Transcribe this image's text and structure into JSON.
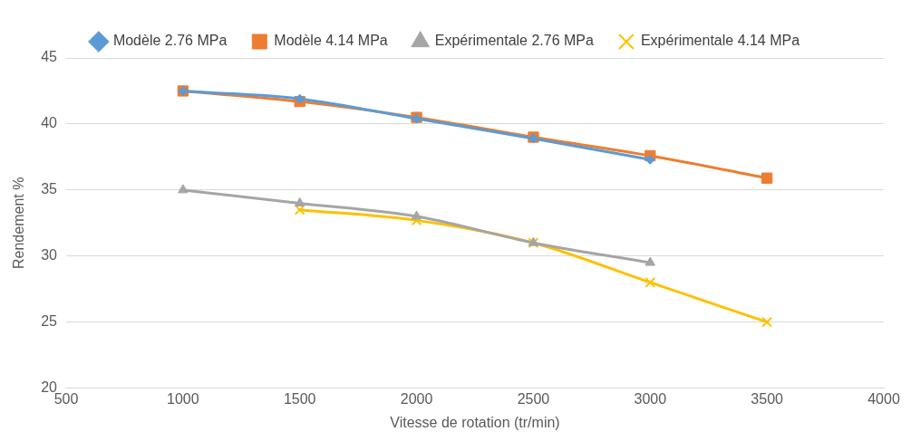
{
  "chart_data": {
    "type": "line",
    "xlabel": "Vitesse de rotation (tr/min)",
    "ylabel": "Rendement %",
    "xlim": [
      500,
      4000
    ],
    "xticks": [
      500,
      1000,
      1500,
      2000,
      2500,
      3000,
      3500,
      4000
    ],
    "ylim": [
      20,
      45
    ],
    "yticks": [
      20,
      25,
      30,
      35,
      40,
      45
    ],
    "grid": "y",
    "legend": "top",
    "series": [
      {
        "name": "Modèle 2.76 MPa",
        "color": "#5b9bd5",
        "marker": "diamond",
        "x": [
          1000,
          1500,
          2000,
          2500,
          3000
        ],
        "values": [
          42.5,
          41.9,
          40.4,
          38.9,
          37.3
        ]
      },
      {
        "name": "Modèle 4.14 MPa",
        "color": "#ed7d31",
        "marker": "square",
        "x": [
          1000,
          1500,
          2000,
          2500,
          3000,
          3500
        ],
        "values": [
          42.5,
          41.7,
          40.5,
          39.0,
          37.6,
          35.9
        ]
      },
      {
        "name": "Expérimentale 2.76 MPa",
        "color": "#a5a5a5",
        "marker": "triangle",
        "x": [
          1000,
          1500,
          2000,
          2500,
          3000
        ],
        "values": [
          35.0,
          34.0,
          33.0,
          31.0,
          29.5
        ]
      },
      {
        "name": "Expérimentale 4.14 MPa",
        "color": "#ffc000",
        "marker": "cross",
        "x": [
          1500,
          2000,
          2500,
          3000,
          3500
        ],
        "values": [
          33.5,
          32.7,
          31.0,
          28.0,
          25.0
        ]
      }
    ]
  }
}
